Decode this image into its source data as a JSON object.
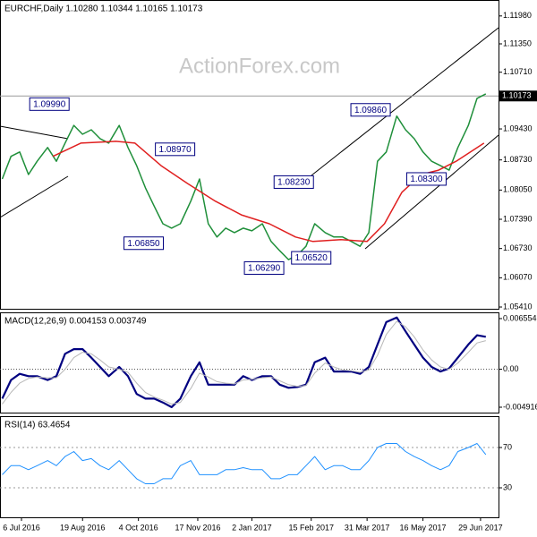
{
  "chart_data": [
    {
      "type": "line",
      "title": "EURCHF,Daily  1.10280 1.10344 1.10165 1.10173",
      "watermark": "ActionForex.com",
      "xlim": [
        -12.3,
        273.3
      ],
      "ylim": [
        1.0537,
        1.1234
      ],
      "yticks": [
        {
          "value": 1.1198,
          "label": "1.11980"
        },
        {
          "value": 1.1135,
          "label": "1.11350"
        },
        {
          "value": 1.1071,
          "label": "1.10710"
        },
        {
          "value": 1.0943,
          "label": "1.09430"
        },
        {
          "value": 1.0873,
          "label": "1.08730"
        },
        {
          "value": 1.0805,
          "label": "1.08050"
        },
        {
          "value": 1.0739,
          "label": "1.07390"
        },
        {
          "value": 1.0673,
          "label": "1.06730"
        },
        {
          "value": 1.0607,
          "label": "1.06070"
        },
        {
          "value": 1.0541,
          "label": "1.05410"
        }
      ],
      "last_price": {
        "value": 1.10173,
        "label": "1.10173"
      },
      "x": [
        -11,
        -6,
        -1,
        4,
        9,
        15,
        20,
        25,
        30,
        35,
        40,
        45,
        50,
        56,
        61,
        66,
        71,
        76,
        81,
        86,
        91,
        97,
        102,
        107,
        112,
        117,
        122,
        127,
        132,
        138,
        143,
        148,
        153,
        158,
        163,
        168,
        174,
        179,
        184,
        189,
        194,
        199,
        204,
        209,
        215,
        220,
        225,
        230,
        235,
        240,
        245,
        250,
        256,
        261,
        266
      ],
      "series": [
        {
          "color": "#1f8f3a",
          "values": [
            1.083,
            1.0881,
            1.0891,
            1.084,
            1.087,
            1.0901,
            1.087,
            1.0911,
            1.0951,
            1.0931,
            1.0941,
            1.0921,
            1.0911,
            1.0951,
            1.0901,
            1.086,
            1.081,
            1.0769,
            1.0729,
            1.0719,
            1.0729,
            1.078,
            1.083,
            1.0729,
            1.0699,
            1.0719,
            1.0709,
            1.0719,
            1.0713,
            1.0729,
            1.0689,
            1.0668,
            1.0648,
            1.0658,
            1.0678,
            1.0729,
            1.0709,
            1.0699,
            1.0699,
            1.0689,
            1.0678,
            1.0709,
            1.087,
            1.0891,
            1.0972,
            1.0941,
            1.0921,
            1.0891,
            1.087,
            1.086,
            1.085,
            1.0901,
            1.0951,
            1.1012,
            1.1022
          ]
        },
        {
          "color": "#e02020",
          "x": [
            18,
            34,
            54,
            65,
            80,
            95,
            111,
            126,
            142,
            157,
            167,
            183,
            198,
            208,
            218,
            229,
            239,
            249,
            265
          ],
          "values": [
            1.0881,
            1.0911,
            1.0915,
            1.0911,
            1.086,
            1.082,
            1.078,
            1.0749,
            1.0729,
            1.0699,
            1.0689,
            1.0693,
            1.0689,
            1.0729,
            1.08,
            1.084,
            1.085,
            1.087,
            1.0911
          ]
        }
      ],
      "annotations": [
        {
          "label": "1.09990",
          "value": 1.0999,
          "x": 16
        },
        {
          "label": "1.08970",
          "value": 1.0897,
          "x": 88
        },
        {
          "label": "1.06850",
          "value": 1.0685,
          "x": 70
        },
        {
          "label": "1.06290",
          "value": 1.0629,
          "x": 139
        },
        {
          "label": "1.06520",
          "value": 1.0652,
          "x": 166
        },
        {
          "label": "1.08230",
          "value": 1.0823,
          "x": 156
        },
        {
          "label": "1.09860",
          "value": 1.0986,
          "x": 200
        },
        {
          "label": "1.08300",
          "value": 1.083,
          "x": 232
        }
      ]
    },
    {
      "type": "line",
      "title": "MACD(12,26,9) 0.004153 0.003749",
      "xlim": [
        -12.3,
        273.3
      ],
      "ylim": [
        -0.00561,
        0.00736
      ],
      "yticks": [
        0.006554,
        {
          "value": 0,
          "label": "0.00"
        },
        -0.004916
      ],
      "zero_line": true,
      "x": [
        -11,
        -6,
        -1,
        4,
        9,
        15,
        20,
        25,
        30,
        35,
        40,
        45,
        50,
        56,
        61,
        66,
        71,
        76,
        81,
        86,
        91,
        97,
        102,
        107,
        112,
        117,
        122,
        127,
        132,
        138,
        143,
        148,
        153,
        158,
        163,
        168,
        174,
        179,
        184,
        189,
        194,
        199,
        204,
        209,
        215,
        220,
        225,
        230,
        235,
        240,
        245,
        250,
        256,
        261,
        266
      ],
      "series": [
        {
          "color": "#000080",
          "width": 2.2,
          "values": [
            -0.0038,
            -0.0014,
            -0.0006,
            -0.0009,
            -0.0009,
            -0.0014,
            -0.0009,
            0.002,
            0.0026,
            0.0026,
            0.0015,
            0.0003,
            -0.0009,
            0.0003,
            -0.0009,
            -0.0032,
            -0.0038,
            -0.0038,
            -0.0043,
            -0.0049,
            -0.0038,
            -0.0009,
            0.0009,
            -0.002,
            -0.002,
            -0.002,
            -0.002,
            -0.0009,
            -0.0014,
            -0.0009,
            -0.0009,
            -0.002,
            -0.0024,
            -0.0023,
            -0.002,
            0.0009,
            0.0015,
            -0.0003,
            -0.0003,
            -0.0003,
            -0.0006,
            0.0003,
            0.0032,
            0.0061,
            0.0067,
            0.0049,
            0.0032,
            0.0015,
            0.0003,
            -0.0003,
            0.0001,
            0.0015,
            0.0032,
            0.0044,
            0.0042
          ]
        },
        {
          "color": "#b8b8b8",
          "width": 1,
          "values": [
            -0.0045,
            -0.003,
            -0.0018,
            -0.0012,
            -0.001,
            -0.0011,
            -0.0011,
            0.0,
            0.0015,
            0.0022,
            0.002,
            0.0012,
            0.0003,
            0.0,
            -0.0004,
            -0.0018,
            -0.003,
            -0.0036,
            -0.004,
            -0.0045,
            -0.0043,
            -0.0025,
            -0.0005,
            -0.001,
            -0.0016,
            -0.0018,
            -0.0019,
            -0.0014,
            -0.0013,
            -0.0011,
            -0.001,
            -0.0015,
            -0.002,
            -0.0022,
            -0.0021,
            -0.0005,
            0.0008,
            0.0003,
            -0.0001,
            -0.0002,
            -0.0004,
            -0.0001,
            0.0018,
            0.0045,
            0.0062,
            0.0055,
            0.0042,
            0.0025,
            0.0012,
            0.0003,
            0.0,
            0.0008,
            0.0022,
            0.0034,
            0.0037
          ]
        }
      ]
    },
    {
      "type": "line",
      "title": "RSI(14) 63.4654",
      "xlim": [
        -12.3,
        273.3
      ],
      "ylim": [
        0.7,
        101.1
      ],
      "yticks": [
        70,
        30
      ],
      "grid": true,
      "xticks": [
        {
          "value": 0,
          "label": "6 Jul 2016"
        },
        {
          "value": 35,
          "label": "19 Aug 2016"
        },
        {
          "value": 67,
          "label": "4 Oct 2016"
        },
        {
          "value": 101,
          "label": "17 Nov 2016"
        },
        {
          "value": 132,
          "label": "2 Jan 2017"
        },
        {
          "value": 166,
          "label": "15 Feb 2017"
        },
        {
          "value": 198,
          "label": "31 Mar 2017"
        },
        {
          "value": 230,
          "label": "16 May 2017"
        },
        {
          "value": 263,
          "label": "29 Jun 2017"
        }
      ],
      "x": [
        -11,
        -6,
        -1,
        4,
        9,
        15,
        20,
        25,
        30,
        35,
        40,
        45,
        50,
        56,
        61,
        66,
        71,
        76,
        81,
        86,
        91,
        97,
        102,
        107,
        112,
        117,
        122,
        127,
        132,
        138,
        143,
        148,
        153,
        158,
        163,
        168,
        174,
        179,
        184,
        189,
        194,
        199,
        204,
        209,
        215,
        220,
        225,
        230,
        235,
        240,
        245,
        250,
        256,
        261,
        266
      ],
      "series": [
        {
          "color": "#1e90ff",
          "width": 1,
          "values": [
            43,
            52,
            52,
            48,
            52,
            57,
            52,
            61,
            66,
            57,
            59,
            52,
            48,
            57,
            48,
            39,
            34,
            34,
            39,
            39,
            52,
            57,
            43,
            43,
            43,
            48,
            48,
            50,
            48,
            48,
            39,
            39,
            43,
            43,
            52,
            61,
            48,
            52,
            52,
            48,
            48,
            57,
            70,
            74,
            74,
            66,
            61,
            57,
            52,
            48,
            52,
            66,
            70,
            74,
            63
          ]
        }
      ]
    }
  ]
}
